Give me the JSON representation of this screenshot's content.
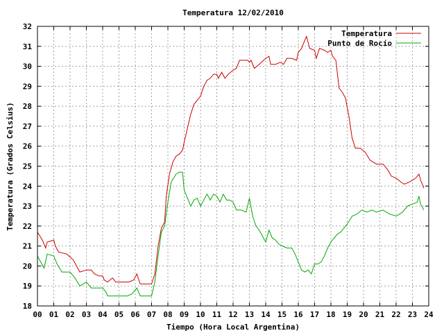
{
  "chart_data": {
    "type": "line",
    "title": "Temperatura 12/02/2010",
    "xlabel": "Tiempo (Hora Local Argentina)",
    "ylabel": "Temperatura (Grados Celsius)",
    "xlim": [
      0,
      24
    ],
    "ylim": [
      18,
      32
    ],
    "x_ticks": [
      0,
      1,
      2,
      3,
      4,
      5,
      6,
      7,
      8,
      9,
      10,
      11,
      12,
      13,
      14,
      15,
      16,
      17,
      18,
      19,
      20,
      21,
      22,
      23,
      24
    ],
    "x_tick_labels": [
      "00",
      "01",
      "02",
      "03",
      "04",
      "05",
      "06",
      "07",
      "08",
      "09",
      "10",
      "11",
      "12",
      "13",
      "14",
      "15",
      "16",
      "17",
      "18",
      "19",
      "20",
      "21",
      "22",
      "23",
      "24"
    ],
    "y_ticks": [
      18,
      19,
      20,
      21,
      22,
      23,
      24,
      25,
      26,
      27,
      28,
      29,
      30,
      31,
      32
    ],
    "y_tick_labels": [
      "18",
      "19",
      "20",
      "21",
      "22",
      "23",
      "24",
      "25",
      "26",
      "27",
      "28",
      "29",
      "30",
      "31",
      "32"
    ],
    "grid": true,
    "legend_position": "top-right",
    "series": [
      {
        "name": "Temperatura",
        "color": "#cc0000",
        "points": [
          [
            0,
            21.7
          ],
          [
            0.3,
            21.3
          ],
          [
            0.5,
            20.9
          ],
          [
            0.6,
            21.2
          ],
          [
            1,
            21.3
          ],
          [
            1.1,
            21
          ],
          [
            1.3,
            20.7
          ],
          [
            1.8,
            20.6
          ],
          [
            2.2,
            20.3
          ],
          [
            2.6,
            19.7
          ],
          [
            3,
            19.8
          ],
          [
            3.3,
            19.8
          ],
          [
            3.5,
            19.6
          ],
          [
            3.8,
            19.5
          ],
          [
            4,
            19.5
          ],
          [
            4.1,
            19.3
          ],
          [
            4.3,
            19.2
          ],
          [
            4.6,
            19.4
          ],
          [
            4.8,
            19.2
          ],
          [
            5.3,
            19.2
          ],
          [
            5.6,
            19.2
          ],
          [
            5.9,
            19.3
          ],
          [
            6.1,
            19.6
          ],
          [
            6.3,
            19.1
          ],
          [
            7,
            19.1
          ],
          [
            7.2,
            19.6
          ],
          [
            7.4,
            21
          ],
          [
            7.6,
            21.9
          ],
          [
            7.8,
            22.2
          ],
          [
            7.9,
            23.5
          ],
          [
            8.1,
            24.6
          ],
          [
            8.3,
            25.2
          ],
          [
            8.5,
            25.5
          ],
          [
            8.7,
            25.6
          ],
          [
            8.9,
            25.8
          ],
          [
            9,
            26.2
          ],
          [
            9.2,
            26.9
          ],
          [
            9.4,
            27.6
          ],
          [
            9.6,
            28.1
          ],
          [
            9.8,
            28.3
          ],
          [
            10,
            28.5
          ],
          [
            10.2,
            29
          ],
          [
            10.4,
            29.3
          ],
          [
            10.6,
            29.4
          ],
          [
            10.8,
            29.6
          ],
          [
            11,
            29.6
          ],
          [
            11.1,
            29.4
          ],
          [
            11.3,
            29.7
          ],
          [
            11.5,
            29.4
          ],
          [
            11.7,
            29.6
          ],
          [
            12,
            29.8
          ],
          [
            12.2,
            29.9
          ],
          [
            12.4,
            30.3
          ],
          [
            12.6,
            30.3
          ],
          [
            12.9,
            30.3
          ],
          [
            13,
            30.2
          ],
          [
            13.1,
            30.3
          ],
          [
            13.3,
            29.9
          ],
          [
            13.6,
            30.1
          ],
          [
            14,
            30.4
          ],
          [
            14.2,
            30.5
          ],
          [
            14.3,
            30.1
          ],
          [
            14.6,
            30.1
          ],
          [
            14.9,
            30.2
          ],
          [
            15.1,
            30.1
          ],
          [
            15.3,
            30.4
          ],
          [
            15.6,
            30.4
          ],
          [
            15.9,
            30.3
          ],
          [
            16,
            30.7
          ],
          [
            16.2,
            30.9
          ],
          [
            16.4,
            31.3
          ],
          [
            16.5,
            31.5
          ],
          [
            16.7,
            30.9
          ],
          [
            17,
            30.8
          ],
          [
            17.1,
            30.4
          ],
          [
            17.3,
            30.9
          ],
          [
            17.6,
            30.8
          ],
          [
            17.8,
            30.7
          ],
          [
            18,
            30.8
          ],
          [
            18.1,
            30.5
          ],
          [
            18.3,
            30.3
          ],
          [
            18.5,
            28.9
          ],
          [
            18.7,
            28.7
          ],
          [
            18.9,
            28.4
          ],
          [
            19.1,
            27.5
          ],
          [
            19.3,
            26.4
          ],
          [
            19.5,
            25.9
          ],
          [
            19.8,
            25.9
          ],
          [
            20.1,
            25.7
          ],
          [
            20.4,
            25.3
          ],
          [
            20.8,
            25.1
          ],
          [
            21.2,
            25.1
          ],
          [
            21.5,
            24.8
          ],
          [
            21.7,
            24.5
          ],
          [
            22,
            24.4
          ],
          [
            22.3,
            24.2
          ],
          [
            22.5,
            24.1
          ],
          [
            22.8,
            24.2
          ],
          [
            23.2,
            24.4
          ],
          [
            23.4,
            24.6
          ],
          [
            23.5,
            24.3
          ],
          [
            23.7,
            23.9
          ]
        ]
      },
      {
        "name": "Punto de Rocío",
        "color": "#00aa00",
        "points": [
          [
            0,
            20.5
          ],
          [
            0.2,
            20.2
          ],
          [
            0.4,
            19.9
          ],
          [
            0.6,
            20.6
          ],
          [
            1,
            20.5
          ],
          [
            1.2,
            20.1
          ],
          [
            1.5,
            19.7
          ],
          [
            2,
            19.7
          ],
          [
            2.3,
            19.4
          ],
          [
            2.6,
            19
          ],
          [
            3,
            19.2
          ],
          [
            3.3,
            18.9
          ],
          [
            3.6,
            18.9
          ],
          [
            4,
            18.9
          ],
          [
            4.2,
            18.7
          ],
          [
            4.3,
            18.5
          ],
          [
            5,
            18.5
          ],
          [
            5.5,
            18.5
          ],
          [
            5.8,
            18.6
          ],
          [
            6,
            18.8
          ],
          [
            6.1,
            18.9
          ],
          [
            6.3,
            18.5
          ],
          [
            7,
            18.5
          ],
          [
            7.2,
            19.2
          ],
          [
            7.4,
            20.5
          ],
          [
            7.6,
            21.7
          ],
          [
            7.8,
            22
          ],
          [
            8,
            23.2
          ],
          [
            8.2,
            24.2
          ],
          [
            8.5,
            24.6
          ],
          [
            8.7,
            24.7
          ],
          [
            8.9,
            24.7
          ],
          [
            9,
            23.8
          ],
          [
            9.2,
            23.4
          ],
          [
            9.4,
            23
          ],
          [
            9.6,
            23.3
          ],
          [
            9.8,
            23.4
          ],
          [
            10,
            23
          ],
          [
            10.2,
            23.3
          ],
          [
            10.4,
            23.6
          ],
          [
            10.6,
            23.3
          ],
          [
            10.8,
            23.6
          ],
          [
            11,
            23.5
          ],
          [
            11.2,
            23.2
          ],
          [
            11.4,
            23.6
          ],
          [
            11.6,
            23.3
          ],
          [
            11.8,
            23.3
          ],
          [
            12,
            23.2
          ],
          [
            12.2,
            22.8
          ],
          [
            12.5,
            22.8
          ],
          [
            12.8,
            22.7
          ],
          [
            13,
            23.4
          ],
          [
            13.2,
            22.5
          ],
          [
            13.4,
            22
          ],
          [
            13.6,
            21.8
          ],
          [
            13.8,
            21.5
          ],
          [
            14,
            21.2
          ],
          [
            14.2,
            21.8
          ],
          [
            14.4,
            21.4
          ],
          [
            14.6,
            21.3
          ],
          [
            14.8,
            21.1
          ],
          [
            15,
            21
          ],
          [
            15.3,
            20.9
          ],
          [
            15.6,
            20.9
          ],
          [
            15.8,
            20.6
          ],
          [
            16,
            20.2
          ],
          [
            16.2,
            19.8
          ],
          [
            16.4,
            19.7
          ],
          [
            16.6,
            19.8
          ],
          [
            16.8,
            19.6
          ],
          [
            17,
            20.1
          ],
          [
            17.2,
            20.1
          ],
          [
            17.4,
            20.2
          ],
          [
            17.6,
            20.5
          ],
          [
            17.8,
            20.9
          ],
          [
            18,
            21.2
          ],
          [
            18.2,
            21.4
          ],
          [
            18.4,
            21.6
          ],
          [
            18.6,
            21.7
          ],
          [
            18.8,
            21.9
          ],
          [
            19,
            22.1
          ],
          [
            19.3,
            22.5
          ],
          [
            19.6,
            22.6
          ],
          [
            19.9,
            22.8
          ],
          [
            20.2,
            22.7
          ],
          [
            20.5,
            22.8
          ],
          [
            20.8,
            22.7
          ],
          [
            21.2,
            22.8
          ],
          [
            21.6,
            22.6
          ],
          [
            22,
            22.5
          ],
          [
            22.4,
            22.7
          ],
          [
            22.7,
            23
          ],
          [
            23,
            23.1
          ],
          [
            23.3,
            23.2
          ],
          [
            23.4,
            23.5
          ],
          [
            23.5,
            23.1
          ],
          [
            23.7,
            22.8
          ]
        ]
      }
    ]
  }
}
